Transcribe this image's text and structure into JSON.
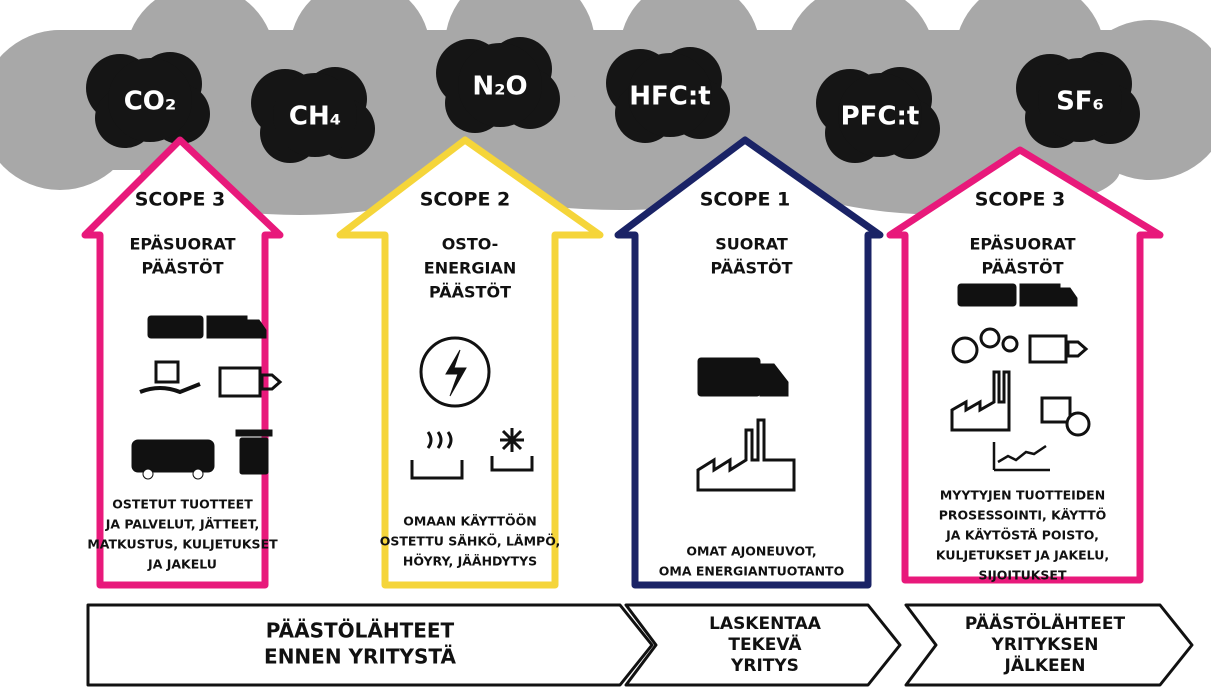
{
  "gases": [
    "CO₂",
    "CH₄",
    "N₂O",
    "HFC:t",
    "PFC:t",
    "SF₆"
  ],
  "scopes": [
    {
      "label": "SCOPE 3",
      "color": "#e8197b",
      "heading": [
        "EPÄSUORAT",
        "PÄÄSTÖT"
      ],
      "description": [
        "OSTETUT TUOTTEET",
        "JA PALVELUT, JÄTTEET,",
        "MATKUSTUS, KULJETUKSET",
        "JA JAKELU"
      ]
    },
    {
      "label": "SCOPE 2",
      "color": "#f5d53a",
      "heading": [
        "OSTO-",
        "ENERGIAN",
        "PÄÄSTÖT"
      ],
      "description": [
        "OMAAN KÄYTTÖÖN",
        "OSTETTU SÄHKÖ, LÄMPÖ,",
        "HÖYRY, JÄÄHDYTYS"
      ]
    },
    {
      "label": "SCOPE 1",
      "color": "#1a2366",
      "heading": [
        "SUORAT",
        "PÄÄSTÖT"
      ],
      "description": [
        "OMAT AJONEUVOT,",
        "OMA ENERGIANTUOTANTO"
      ]
    },
    {
      "label": "SCOPE 3",
      "color": "#e8197b",
      "heading": [
        "EPÄSUORAT",
        "PÄÄSTÖT"
      ],
      "description": [
        "MYYTYJEN TUOTTEIDEN",
        "PROSESSOINTI, KÄYTTÖ",
        "JA KÄYTÖSTÄ POISTO,",
        "KULJETUKSET JA JAKELU,",
        "SIJOITUKSET"
      ]
    }
  ],
  "stages": [
    {
      "lines": [
        "PÄÄSTÖLÄHTEET",
        "ENNEN YRITYSTÄ"
      ]
    },
    {
      "lines": [
        "LASKENTAA",
        "TEKEVÄ",
        "YRITYS"
      ]
    },
    {
      "lines": [
        "PÄÄSTÖLÄHTEET",
        "YRITYKSEN",
        "JÄLKEEN"
      ]
    }
  ]
}
